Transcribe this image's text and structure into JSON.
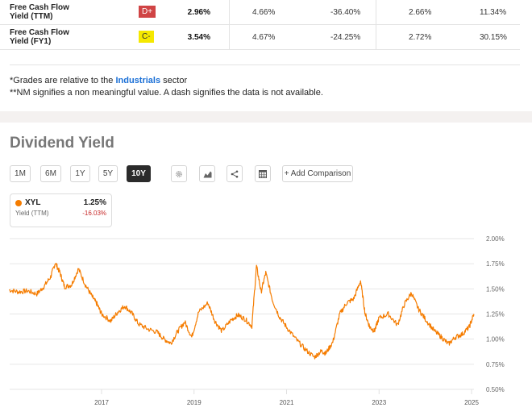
{
  "metrics_table": {
    "rows": [
      {
        "label_line1": "Free Cash Flow",
        "label_line2": "Yield (TTM)",
        "grade": "D+",
        "grade_bg": "#d04445",
        "grade_fg": "#ffffff",
        "values": [
          "2.96%",
          "4.66%",
          "-36.40%",
          "2.66%",
          "11.34%"
        ]
      },
      {
        "label_line1": "Free Cash Flow",
        "label_line2": "Yield (FY1)",
        "grade": "C-",
        "grade_bg": "#f5e800",
        "grade_fg": "#333333",
        "values": [
          "3.54%",
          "4.67%",
          "-24.25%",
          "2.72%",
          "30.15%"
        ]
      }
    ]
  },
  "footnotes": {
    "line1_prefix": "*Grades are relative to the ",
    "line1_sector": "Industrials",
    "line1_suffix": " sector",
    "line2": "**NM signifies a non meaningful value. A dash signifies the data is not available."
  },
  "section": {
    "title": "Dividend Yield"
  },
  "toolbar": {
    "ranges": [
      {
        "label": "1M",
        "active": false
      },
      {
        "label": "6M",
        "active": false
      },
      {
        "label": "1Y",
        "active": false
      },
      {
        "label": "5Y",
        "active": false
      },
      {
        "label": "10Y",
        "active": true
      }
    ],
    "icons": [
      "gear-icon",
      "area-chart-icon",
      "share-icon",
      "table-icon"
    ],
    "add_comparison": "+ Add Comparison"
  },
  "legend": {
    "ticker": "XYL",
    "value": "1.25%",
    "metric": "Yield (TTM)",
    "change": "-16.03%",
    "color": "#f57c00"
  },
  "chart_data": {
    "type": "line",
    "title": "Dividend Yield",
    "xlabel": "",
    "ylabel": "",
    "x_tick_labels": [
      "2017",
      "2019",
      "2021",
      "2023",
      "2025"
    ],
    "y_tick_labels": [
      "2.00%",
      "1.75%",
      "1.50%",
      "1.25%",
      "1.00%",
      "0.75%",
      "0.50%"
    ],
    "ylim": [
      0.5,
      2.0
    ],
    "xlim": [
      2015.0,
      2025.1
    ],
    "grid": true,
    "legend_position": "top-left",
    "series": [
      {
        "name": "XYL",
        "color": "#f57c00",
        "x": [
          2015.0,
          2015.2,
          2015.4,
          2015.6,
          2015.75,
          2015.9,
          2016.0,
          2016.1,
          2016.2,
          2016.35,
          2016.5,
          2016.65,
          2016.8,
          2016.9,
          2017.0,
          2017.2,
          2017.35,
          2017.5,
          2017.65,
          2017.8,
          2018.0,
          2018.2,
          2018.35,
          2018.5,
          2018.65,
          2018.8,
          2018.95,
          2019.1,
          2019.3,
          2019.45,
          2019.6,
          2019.8,
          2019.95,
          2020.1,
          2020.25,
          2020.35,
          2020.45,
          2020.55,
          2020.7,
          2020.85,
          2021.0,
          2021.2,
          2021.4,
          2021.6,
          2021.75,
          2021.85,
          2022.0,
          2022.15,
          2022.3,
          2022.45,
          2022.6,
          2022.7,
          2022.8,
          2022.9,
          2023.0,
          2023.2,
          2023.4,
          2023.55,
          2023.7,
          2023.85,
          2024.0,
          2024.2,
          2024.35,
          2024.5,
          2024.65,
          2024.8,
          2024.95,
          2025.05
        ],
        "values": [
          1.49,
          1.47,
          1.48,
          1.45,
          1.52,
          1.62,
          1.76,
          1.66,
          1.52,
          1.54,
          1.7,
          1.54,
          1.42,
          1.35,
          1.25,
          1.18,
          1.27,
          1.33,
          1.26,
          1.15,
          1.1,
          1.07,
          1.0,
          0.96,
          1.08,
          1.17,
          1.02,
          1.27,
          1.36,
          1.18,
          1.08,
          1.19,
          1.24,
          1.2,
          1.13,
          1.73,
          1.47,
          1.66,
          1.38,
          1.22,
          1.12,
          1.0,
          0.9,
          0.82,
          0.88,
          0.86,
          0.97,
          1.25,
          1.36,
          1.4,
          1.58,
          1.25,
          1.12,
          1.08,
          1.21,
          1.25,
          1.14,
          1.35,
          1.46,
          1.3,
          1.2,
          1.08,
          1.02,
          0.95,
          1.02,
          1.05,
          1.12,
          1.25
        ]
      }
    ]
  }
}
